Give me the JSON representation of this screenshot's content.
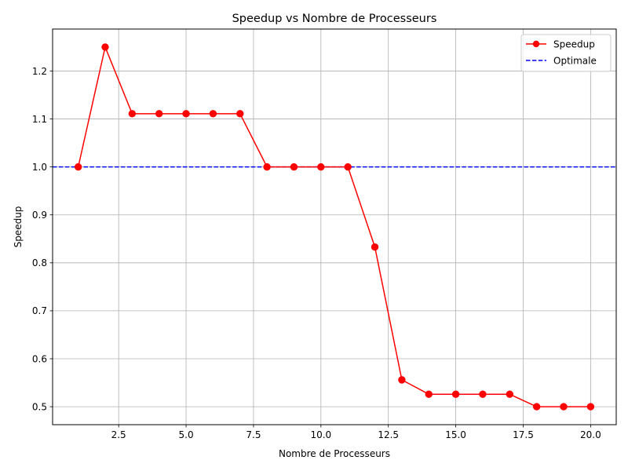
{
  "chart_data": {
    "type": "line",
    "title": "Speedup vs Nombre de Processeurs",
    "xlabel": "Nombre de Processeurs",
    "ylabel": "Speedup",
    "xlim": [
      0.05,
      20.95
    ],
    "ylim": [
      0.4625,
      1.2875
    ],
    "xticks": [
      2.5,
      5.0,
      7.5,
      10.0,
      12.5,
      15.0,
      17.5,
      20.0
    ],
    "xtick_labels": [
      "2.5",
      "5.0",
      "7.5",
      "10.0",
      "12.5",
      "15.0",
      "17.5",
      "20.0"
    ],
    "yticks": [
      0.5,
      0.6,
      0.7,
      0.8,
      0.9,
      1.0,
      1.1,
      1.2
    ],
    "ytick_labels": [
      "0.5",
      "0.6",
      "0.7",
      "0.8",
      "0.9",
      "1.0",
      "1.1",
      "1.2"
    ],
    "grid": true,
    "legend_position": "top-right",
    "series": [
      {
        "name": "Speedup",
        "color": "#ff0000",
        "style": "solid",
        "marker": "circle",
        "x": [
          1,
          2,
          3,
          4,
          5,
          6,
          7,
          8,
          9,
          10,
          11,
          12,
          13,
          14,
          15,
          16,
          17,
          18,
          19,
          20
        ],
        "y": [
          1.0,
          1.25,
          1.111,
          1.111,
          1.111,
          1.111,
          1.111,
          1.0,
          1.0,
          1.0,
          1.0,
          0.833,
          0.556,
          0.526,
          0.526,
          0.526,
          0.526,
          0.5,
          0.5,
          0.5
        ]
      },
      {
        "name": "Optimale",
        "color": "#0000ff",
        "style": "dashed",
        "type": "hline",
        "y": 1.0
      }
    ]
  }
}
